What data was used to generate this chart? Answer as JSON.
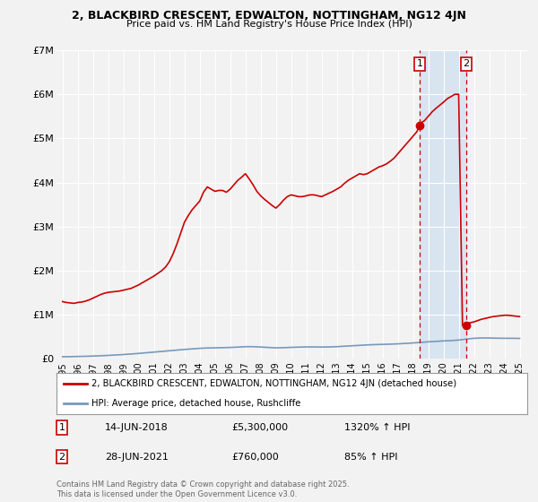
{
  "title1": "2, BLACKBIRD CRESCENT, EDWALTON, NOTTINGHAM, NG12 4JN",
  "title2": "Price paid vs. HM Land Registry's House Price Index (HPI)",
  "ylim": [
    0,
    7000000
  ],
  "xlim_start": 1994.6,
  "xlim_end": 2025.5,
  "yticks": [
    0,
    1000000,
    2000000,
    3000000,
    4000000,
    5000000,
    6000000,
    7000000
  ],
  "ytick_labels": [
    "£0",
    "£1M",
    "£2M",
    "£3M",
    "£4M",
    "£5M",
    "£6M",
    "£7M"
  ],
  "xtick_labels": [
    "1995",
    "1996",
    "1997",
    "1998",
    "1999",
    "2000",
    "2001",
    "2002",
    "2003",
    "2004",
    "2005",
    "2006",
    "2007",
    "2008",
    "2009",
    "2010",
    "2011",
    "2012",
    "2013",
    "2014",
    "2015",
    "2016",
    "2017",
    "2018",
    "2019",
    "2020",
    "2021",
    "2022",
    "2023",
    "2024",
    "2025"
  ],
  "bg_color": "#f2f2f2",
  "grid_color": "#ffffff",
  "red_line_color": "#cc0000",
  "blue_line_color": "#7799bb",
  "shade_color": "#d8e4f0",
  "dashed_color": "#cc0000",
  "marker1_x": 2018.45,
  "marker1_y": 5300000,
  "marker2_x": 2021.49,
  "marker2_y": 760000,
  "sale1_date": "14-JUN-2018",
  "sale1_price": "£5,300,000",
  "sale1_hpi": "1320% ↑ HPI",
  "sale2_date": "28-JUN-2021",
  "sale2_price": "£760,000",
  "sale2_hpi": "85% ↑ HPI",
  "legend_line1": "2, BLACKBIRD CRESCENT, EDWALTON, NOTTINGHAM, NG12 4JN (detached house)",
  "legend_line2": "HPI: Average price, detached house, Rushcliffe",
  "footer": "Contains HM Land Registry data © Crown copyright and database right 2025.\nThis data is licensed under the Open Government Licence v3.0.",
  "red_x": [
    1995.0,
    1995.25,
    1995.5,
    1995.75,
    1996.0,
    1996.25,
    1996.5,
    1996.75,
    1997.0,
    1997.25,
    1997.5,
    1997.75,
    1998.0,
    1998.25,
    1998.5,
    1998.75,
    1999.0,
    1999.25,
    1999.5,
    1999.75,
    2000.0,
    2000.25,
    2000.5,
    2000.75,
    2001.0,
    2001.25,
    2001.5,
    2001.75,
    2002.0,
    2002.25,
    2002.5,
    2002.75,
    2003.0,
    2003.25,
    2003.5,
    2003.75,
    2004.0,
    2004.25,
    2004.5,
    2004.75,
    2005.0,
    2005.25,
    2005.5,
    2005.75,
    2006.0,
    2006.25,
    2006.5,
    2006.75,
    2007.0,
    2007.25,
    2007.5,
    2007.75,
    2008.0,
    2008.25,
    2008.5,
    2008.75,
    2009.0,
    2009.25,
    2009.5,
    2009.75,
    2010.0,
    2010.25,
    2010.5,
    2010.75,
    2011.0,
    2011.25,
    2011.5,
    2011.75,
    2012.0,
    2012.25,
    2012.5,
    2012.75,
    2013.0,
    2013.25,
    2013.5,
    2013.75,
    2014.0,
    2014.25,
    2014.5,
    2014.75,
    2015.0,
    2015.25,
    2015.5,
    2015.75,
    2016.0,
    2016.25,
    2016.5,
    2016.75,
    2017.0,
    2017.25,
    2017.5,
    2017.75,
    2018.0,
    2018.25,
    2018.45,
    2018.5,
    2018.75,
    2019.0,
    2019.25,
    2019.5,
    2019.75,
    2020.0,
    2020.25,
    2020.5,
    2020.75,
    2021.0,
    2021.25,
    2021.49,
    2021.5,
    2021.75,
    2022.0,
    2022.25,
    2022.5,
    2022.75,
    2023.0,
    2023.25,
    2023.5,
    2023.75,
    2024.0,
    2024.25,
    2024.5,
    2024.75,
    2025.0
  ],
  "red_y": [
    1300000,
    1280000,
    1270000,
    1260000,
    1280000,
    1290000,
    1310000,
    1340000,
    1380000,
    1420000,
    1460000,
    1490000,
    1510000,
    1520000,
    1530000,
    1540000,
    1560000,
    1580000,
    1600000,
    1640000,
    1680000,
    1730000,
    1780000,
    1830000,
    1880000,
    1940000,
    2000000,
    2080000,
    2200000,
    2380000,
    2600000,
    2850000,
    3100000,
    3250000,
    3380000,
    3480000,
    3580000,
    3780000,
    3900000,
    3850000,
    3800000,
    3820000,
    3820000,
    3780000,
    3850000,
    3950000,
    4050000,
    4120000,
    4200000,
    4080000,
    3950000,
    3800000,
    3700000,
    3620000,
    3550000,
    3480000,
    3420000,
    3500000,
    3600000,
    3680000,
    3720000,
    3700000,
    3680000,
    3680000,
    3700000,
    3720000,
    3720000,
    3700000,
    3680000,
    3720000,
    3760000,
    3800000,
    3850000,
    3900000,
    3980000,
    4050000,
    4100000,
    4150000,
    4200000,
    4180000,
    4200000,
    4250000,
    4300000,
    4350000,
    4380000,
    4420000,
    4480000,
    4550000,
    4650000,
    4750000,
    4850000,
    4950000,
    5050000,
    5150000,
    5300000,
    5350000,
    5400000,
    5500000,
    5600000,
    5680000,
    5750000,
    5820000,
    5900000,
    5950000,
    6000000,
    6000000,
    760000,
    780000,
    800000,
    820000,
    840000,
    870000,
    900000,
    920000,
    940000,
    960000,
    970000,
    980000,
    990000,
    990000,
    980000,
    970000,
    960000
  ],
  "blue_x": [
    1995.0,
    1995.5,
    1996.0,
    1996.5,
    1997.0,
    1997.5,
    1998.0,
    1998.5,
    1999.0,
    1999.5,
    2000.0,
    2000.5,
    2001.0,
    2001.5,
    2002.0,
    2002.5,
    2003.0,
    2003.5,
    2004.0,
    2004.5,
    2005.0,
    2005.5,
    2006.0,
    2006.5,
    2007.0,
    2007.5,
    2008.0,
    2008.5,
    2009.0,
    2009.5,
    2010.0,
    2010.5,
    2011.0,
    2011.5,
    2012.0,
    2012.5,
    2013.0,
    2013.5,
    2014.0,
    2014.5,
    2015.0,
    2015.5,
    2016.0,
    2016.5,
    2017.0,
    2017.5,
    2018.0,
    2018.5,
    2019.0,
    2019.5,
    2020.0,
    2020.5,
    2021.0,
    2021.5,
    2022.0,
    2022.5,
    2023.0,
    2023.5,
    2024.0,
    2024.5,
    2025.0
  ],
  "blue_y": [
    50000,
    52000,
    56000,
    60000,
    65000,
    72000,
    80000,
    90000,
    100000,
    112000,
    125000,
    140000,
    155000,
    170000,
    185000,
    200000,
    215000,
    228000,
    240000,
    248000,
    252000,
    255000,
    260000,
    268000,
    278000,
    278000,
    270000,
    260000,
    252000,
    255000,
    262000,
    268000,
    272000,
    272000,
    270000,
    272000,
    278000,
    288000,
    298000,
    308000,
    318000,
    325000,
    330000,
    335000,
    342000,
    352000,
    362000,
    375000,
    388000,
    398000,
    408000,
    415000,
    428000,
    450000,
    468000,
    475000,
    475000,
    470000,
    468000,
    468000,
    465000
  ]
}
